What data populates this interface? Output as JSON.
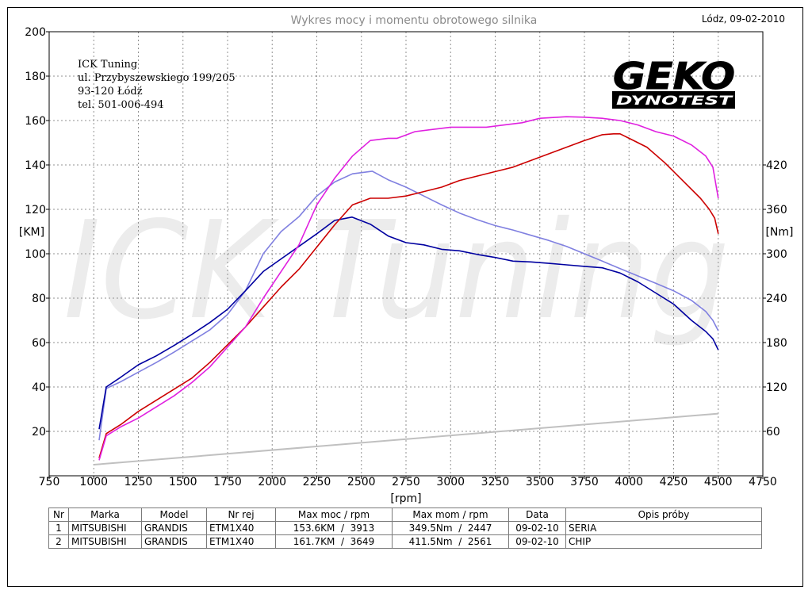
{
  "header": {
    "title": "Wykres mocy i momentu obrotowego silnika",
    "date": "Lódz, 09-02-2010"
  },
  "company": {
    "name": "ICK Tuning",
    "street": "ul. Przybyszewskiego 199/205",
    "city": "93-120 Łódź",
    "phone": "tel. 501-006-494"
  },
  "logo": {
    "line1": "GEKO",
    "line2": "DYNOTEST"
  },
  "watermark": "ICK Tuning",
  "colors": {
    "seria_power": "#cc0000",
    "chip_power": "#e020e0",
    "seria_torque": "#0000a0",
    "chip_torque": "#8080e0",
    "loss": "#c0c0c0",
    "grid": "#909090"
  },
  "chart_data": {
    "type": "line",
    "title": "Wykres mocy i momentu obrotowego silnika",
    "xlabel": "[rpm]",
    "ylabel": "[KM]",
    "ylabel_right": "[Nm]",
    "xlim": [
      750,
      4750
    ],
    "ylim": [
      0,
      200
    ],
    "ylim_right": [
      0,
      600
    ],
    "x_ticks": [
      750,
      1000,
      1250,
      1500,
      1750,
      2000,
      2250,
      2500,
      2750,
      3000,
      3250,
      3500,
      3750,
      4000,
      4250,
      4500,
      4750
    ],
    "y_ticks": [
      20,
      40,
      60,
      80,
      100,
      120,
      140,
      160,
      180,
      200
    ],
    "y_right_ticks": [
      60,
      120,
      180,
      240,
      300,
      360,
      420
    ],
    "grid": true,
    "series": [
      {
        "key": "seria_power",
        "axis": "left",
        "x": [
          1030,
          1070,
          1150,
          1250,
          1350,
          1450,
          1550,
          1650,
          1750,
          1850,
          1950,
          2050,
          2150,
          2250,
          2350,
          2450,
          2550,
          2650,
          2750,
          2850,
          2950,
          3050,
          3150,
          3250,
          3350,
          3450,
          3550,
          3650,
          3750,
          3850,
          3913,
          3950,
          4000,
          4100,
          4200,
          4300,
          4400,
          4450,
          4480,
          4500
        ],
        "values": [
          8,
          19,
          23,
          29,
          34,
          39,
          44,
          51,
          59,
          67,
          76,
          85,
          93,
          103,
          113,
          122,
          125,
          125,
          126,
          128,
          130,
          133,
          135,
          137,
          139,
          142,
          145,
          148,
          151,
          153.6,
          154,
          154,
          152,
          148,
          141,
          133,
          125,
          120,
          116,
          109
        ]
      },
      {
        "key": "chip_power",
        "axis": "left",
        "x": [
          1030,
          1070,
          1150,
          1250,
          1350,
          1450,
          1550,
          1650,
          1750,
          1850,
          1950,
          2050,
          2150,
          2250,
          2350,
          2450,
          2550,
          2650,
          2700,
          2800,
          2900,
          3000,
          3100,
          3200,
          3300,
          3400,
          3500,
          3649,
          3750,
          3850,
          3950,
          4050,
          4150,
          4250,
          4350,
          4430,
          4470,
          4500
        ],
        "values": [
          7,
          18,
          22,
          26,
          31,
          36,
          42,
          49,
          58,
          67,
          80,
          92,
          104,
          122,
          134,
          144,
          151,
          152,
          152,
          155,
          156,
          157,
          157,
          157,
          158,
          159,
          161,
          161.7,
          161.5,
          161,
          160,
          158,
          155,
          153,
          149,
          144,
          139,
          125
        ]
      },
      {
        "key": "seria_torque",
        "axis": "right",
        "x": [
          1030,
          1070,
          1150,
          1250,
          1350,
          1450,
          1550,
          1650,
          1750,
          1850,
          1950,
          2050,
          2150,
          2250,
          2350,
          2447,
          2550,
          2650,
          2750,
          2850,
          2950,
          3050,
          3150,
          3250,
          3350,
          3450,
          3550,
          3650,
          3750,
          3850,
          3950,
          4050,
          4150,
          4250,
          4350,
          4430,
          4470,
          4500
        ],
        "values": [
          63,
          120,
          133,
          150,
          162,
          176,
          191,
          207,
          225,
          250,
          276,
          293,
          310,
          327,
          345,
          349.5,
          340,
          324,
          315,
          312,
          306,
          304,
          299,
          295,
          290,
          289,
          287,
          285,
          283,
          281,
          274,
          262,
          247,
          232,
          210,
          195,
          185,
          170
        ]
      },
      {
        "key": "chip_torque",
        "axis": "right",
        "x": [
          1030,
          1070,
          1150,
          1250,
          1350,
          1450,
          1550,
          1650,
          1750,
          1850,
          1950,
          2050,
          2150,
          2250,
          2350,
          2450,
          2561,
          2650,
          2750,
          2850,
          2950,
          3050,
          3150,
          3250,
          3350,
          3450,
          3550,
          3650,
          3750,
          3850,
          3950,
          4050,
          4150,
          4250,
          4350,
          4430,
          4470,
          4500
        ],
        "values": [
          48,
          118,
          127,
          140,
          153,
          167,
          182,
          197,
          218,
          250,
          300,
          330,
          350,
          378,
          397,
          408,
          411.5,
          400,
          390,
          378,
          366,
          355,
          346,
          338,
          332,
          325,
          318,
          310,
          300,
          290,
          280,
          270,
          260,
          250,
          237,
          222,
          210,
          196
        ]
      },
      {
        "key": "loss",
        "axis": "left",
        "x": [
          1000,
          4500
        ],
        "values": [
          5,
          28
        ]
      }
    ]
  },
  "table": {
    "headers": [
      "Nr",
      "Marka",
      "Model",
      "Nr rej",
      "Max moc / rpm",
      "Max mom / rpm",
      "Data",
      "Opis próby"
    ],
    "rows": [
      [
        "1",
        "MITSUBISHI",
        "GRANDIS",
        "ETM1X40",
        "153.6KM  /  3913",
        "349.5Nm  /  2447",
        "09-02-10",
        "SERIA"
      ],
      [
        "2",
        "MITSUBISHI",
        "GRANDIS",
        "ETM1X40",
        "161.7KM  /  3649",
        "411.5Nm  /  2561",
        "09-02-10",
        "CHIP"
      ]
    ]
  }
}
